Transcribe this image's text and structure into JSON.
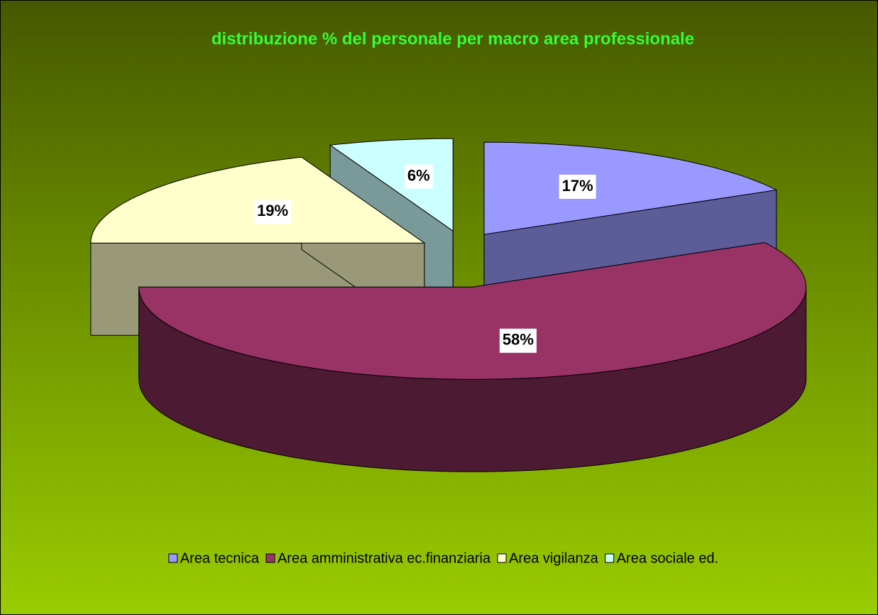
{
  "chart_data": {
    "type": "pie",
    "title": "distribuzione % del personale per macro area professionale",
    "categories": [
      "Area tecnica",
      "Area amministrativa ec.finanziaria",
      "Area vigilanza",
      "Area sociale ed."
    ],
    "values": [
      17,
      58,
      19,
      6
    ],
    "value_labels": [
      "17%",
      "58%",
      "19%",
      "6%"
    ],
    "colors": [
      "#9999ff",
      "#993366",
      "#ffffcc",
      "#ccffff"
    ],
    "legend": "bottom"
  }
}
